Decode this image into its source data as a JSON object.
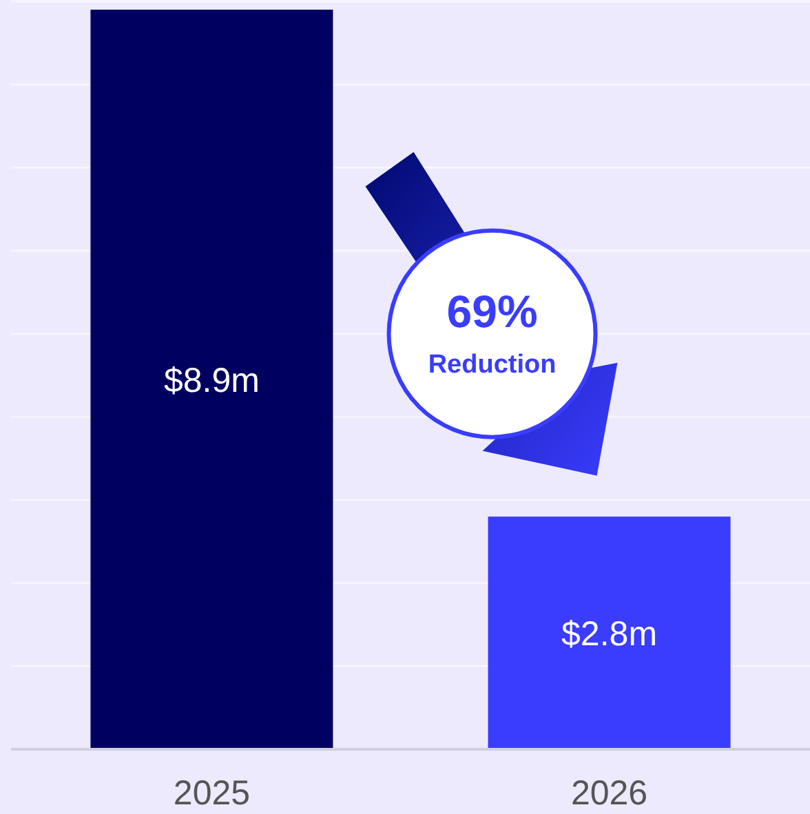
{
  "chart_data": {
    "type": "bar",
    "categories": [
      "2025",
      "2026"
    ],
    "series": [
      {
        "values": [
          8.9,
          2.8
        ],
        "colors": [
          "#000060",
          "#3a3cfe"
        ],
        "value_labels": [
          "$8.9m",
          "$2.8m"
        ]
      }
    ],
    "ylim": [
      0,
      9
    ],
    "yticks": [
      {
        "value": 0,
        "label": null
      },
      {
        "value": 1,
        "label": null
      },
      {
        "value": 2,
        "label": null
      },
      {
        "value": 3,
        "label": null
      },
      {
        "value": 4,
        "label": null
      },
      {
        "value": 5,
        "label": null
      },
      {
        "value": 6,
        "label": null
      },
      {
        "value": 7,
        "label": null
      },
      {
        "value": 8,
        "label": null
      },
      {
        "value": 9,
        "label": null
      }
    ],
    "grid": "y",
    "tick_labels": "x",
    "annotations": [
      "69%",
      "Reduction"
    ]
  }
}
